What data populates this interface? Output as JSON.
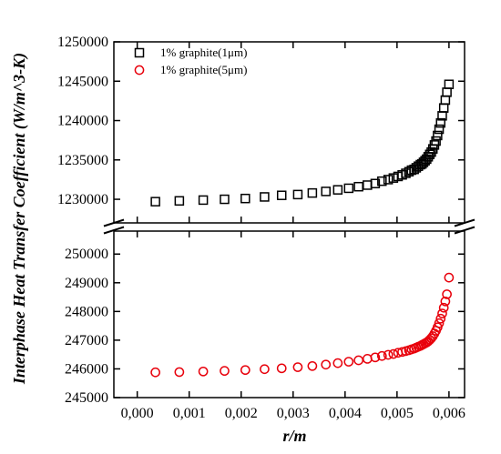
{
  "chart_data": {
    "type": "scatter",
    "title": "",
    "xlabel": "r/m",
    "ylabel": "Interphase Heat Transfer Coefficient (W/m^3-K)",
    "axis_break": true,
    "grid": false,
    "legend_position": "top-left",
    "x_ticks": [
      "0,000",
      "0,001",
      "0,002",
      "0,003",
      "0,004",
      "0,005",
      "0,006"
    ],
    "x_tick_values": [
      0,
      0.001,
      0.002,
      0.003,
      0.004,
      0.005,
      0.006
    ],
    "xlim": [
      -0.00045,
      0.0063
    ],
    "panels": [
      {
        "id": "upper",
        "ylim": [
          1227000,
          1250000
        ],
        "y_ticks": [
          "1230000",
          "1235000",
          "1240000",
          "1245000",
          "1250000"
        ],
        "y_tick_values": [
          1230000,
          1235000,
          1240000,
          1245000,
          1250000
        ]
      },
      {
        "id": "lower",
        "ylim": [
          245000,
          250800
        ],
        "y_ticks": [
          "245000",
          "246000",
          "247000",
          "248000",
          "249000",
          "250000"
        ],
        "y_tick_values": [
          245000,
          246000,
          247000,
          248000,
          249000,
          250000
        ]
      }
    ],
    "series": [
      {
        "name": "1% graphite(1μm)",
        "panel": "upper",
        "marker": "square",
        "color": "#000000",
        "x": [
          0.00035,
          0.00081,
          0.00127,
          0.00168,
          0.00208,
          0.00245,
          0.00278,
          0.00309,
          0.00337,
          0.00363,
          0.00386,
          0.00407,
          0.00426,
          0.00443,
          0.00458,
          0.00471,
          0.00483,
          0.00493,
          0.00502,
          0.0051,
          0.00517,
          0.00523,
          0.00528,
          0.00533,
          0.00537,
          0.00541,
          0.00545,
          0.00548,
          0.00551,
          0.00554,
          0.00557,
          0.0056,
          0.00563,
          0.00566,
          0.00569,
          0.00572,
          0.00575,
          0.00578,
          0.00581,
          0.00584,
          0.00587,
          0.0059,
          0.00593,
          0.00596,
          0.006
        ],
        "y": [
          1229700,
          1229800,
          1229900,
          1230000,
          1230100,
          1230300,
          1230500,
          1230600,
          1230800,
          1231000,
          1231200,
          1231400,
          1231600,
          1231800,
          1232000,
          1232300,
          1232500,
          1232700,
          1232900,
          1233100,
          1233300,
          1233500,
          1233700,
          1233800,
          1234000,
          1234200,
          1234400,
          1234500,
          1234700,
          1234900,
          1235100,
          1235400,
          1235700,
          1236000,
          1236400,
          1236900,
          1237400,
          1238100,
          1238900,
          1239700,
          1240600,
          1241600,
          1242600,
          1243600,
          1244600
        ]
      },
      {
        "name": "1% graphite(5μm)",
        "panel": "lower",
        "marker": "circle",
        "color": "#e8000b",
        "x": [
          0.00035,
          0.00081,
          0.00127,
          0.00168,
          0.00208,
          0.00245,
          0.00278,
          0.00309,
          0.00337,
          0.00363,
          0.00386,
          0.00407,
          0.00426,
          0.00443,
          0.00458,
          0.00471,
          0.00483,
          0.00493,
          0.00502,
          0.0051,
          0.00517,
          0.00523,
          0.00528,
          0.00533,
          0.00537,
          0.00541,
          0.00545,
          0.00548,
          0.00551,
          0.00554,
          0.00557,
          0.0056,
          0.00563,
          0.00566,
          0.00569,
          0.00572,
          0.00575,
          0.00578,
          0.00581,
          0.00584,
          0.00587,
          0.0059,
          0.00593,
          0.00596,
          0.006
        ],
        "y": [
          245880,
          245890,
          245910,
          245930,
          245960,
          245990,
          246020,
          246060,
          246100,
          246150,
          246200,
          246250,
          246300,
          246350,
          246400,
          246450,
          246490,
          246520,
          246560,
          246590,
          246620,
          246650,
          246680,
          246710,
          246740,
          246770,
          246800,
          246830,
          246860,
          246890,
          246920,
          246960,
          247010,
          247070,
          247140,
          247230,
          247330,
          247450,
          247590,
          247750,
          247930,
          248130,
          248350,
          248600,
          249180
        ]
      }
    ]
  }
}
